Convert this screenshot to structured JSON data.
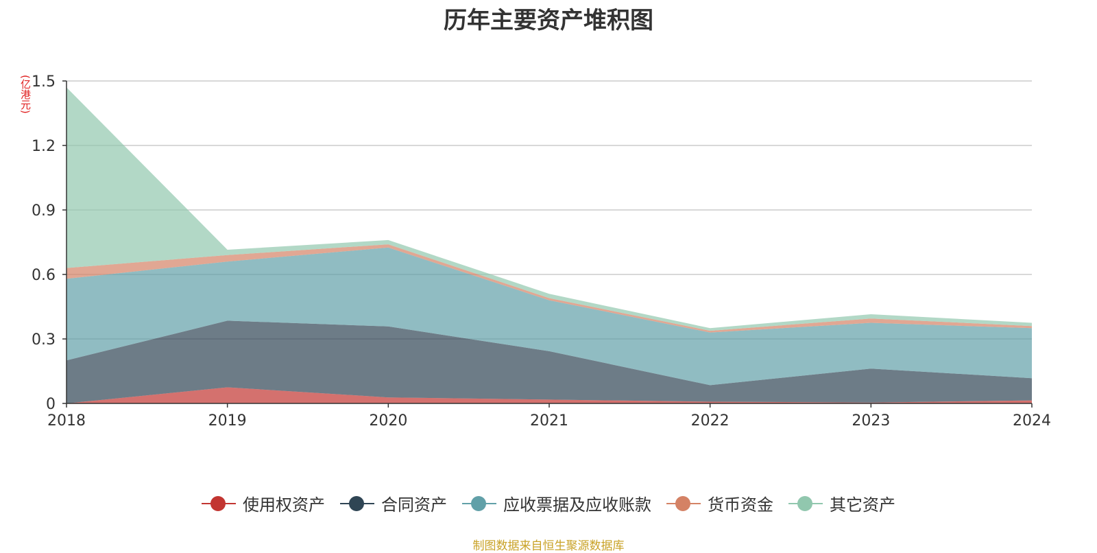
{
  "chart_data": {
    "type": "area",
    "stacked": true,
    "title": "历年主要资产堆积图",
    "unit_label": "(亿港元)",
    "x": [
      "2018",
      "2019",
      "2020",
      "2021",
      "2022",
      "2023",
      "2024"
    ],
    "y_ticks": [
      "0",
      "0.3",
      "0.6",
      "0.9",
      "1.2",
      "1.5"
    ],
    "ylim": [
      0,
      1.5
    ],
    "grid": true,
    "legend_position": "bottom",
    "series": [
      {
        "name": "使用权资产",
        "color": "#c23531",
        "values": [
          0.0,
          0.075,
          0.028,
          0.018,
          0.008,
          0.004,
          0.014
        ]
      },
      {
        "name": "合同资产",
        "color": "#2f4554",
        "values": [
          0.2,
          0.31,
          0.33,
          0.225,
          0.077,
          0.158,
          0.103
        ]
      },
      {
        "name": "应收票据及应收账款",
        "color": "#61a0a8",
        "values": [
          0.38,
          0.275,
          0.367,
          0.237,
          0.245,
          0.213,
          0.233
        ]
      },
      {
        "name": "货币资金",
        "color": "#d48265",
        "values": [
          0.05,
          0.03,
          0.015,
          0.01,
          0.008,
          0.02,
          0.01
        ]
      },
      {
        "name": "其它资产",
        "color": "#91c7ae",
        "values": [
          0.84,
          0.025,
          0.02,
          0.02,
          0.012,
          0.02,
          0.015
        ]
      }
    ]
  },
  "source_note": "制图数据来自恒生聚源数据库"
}
